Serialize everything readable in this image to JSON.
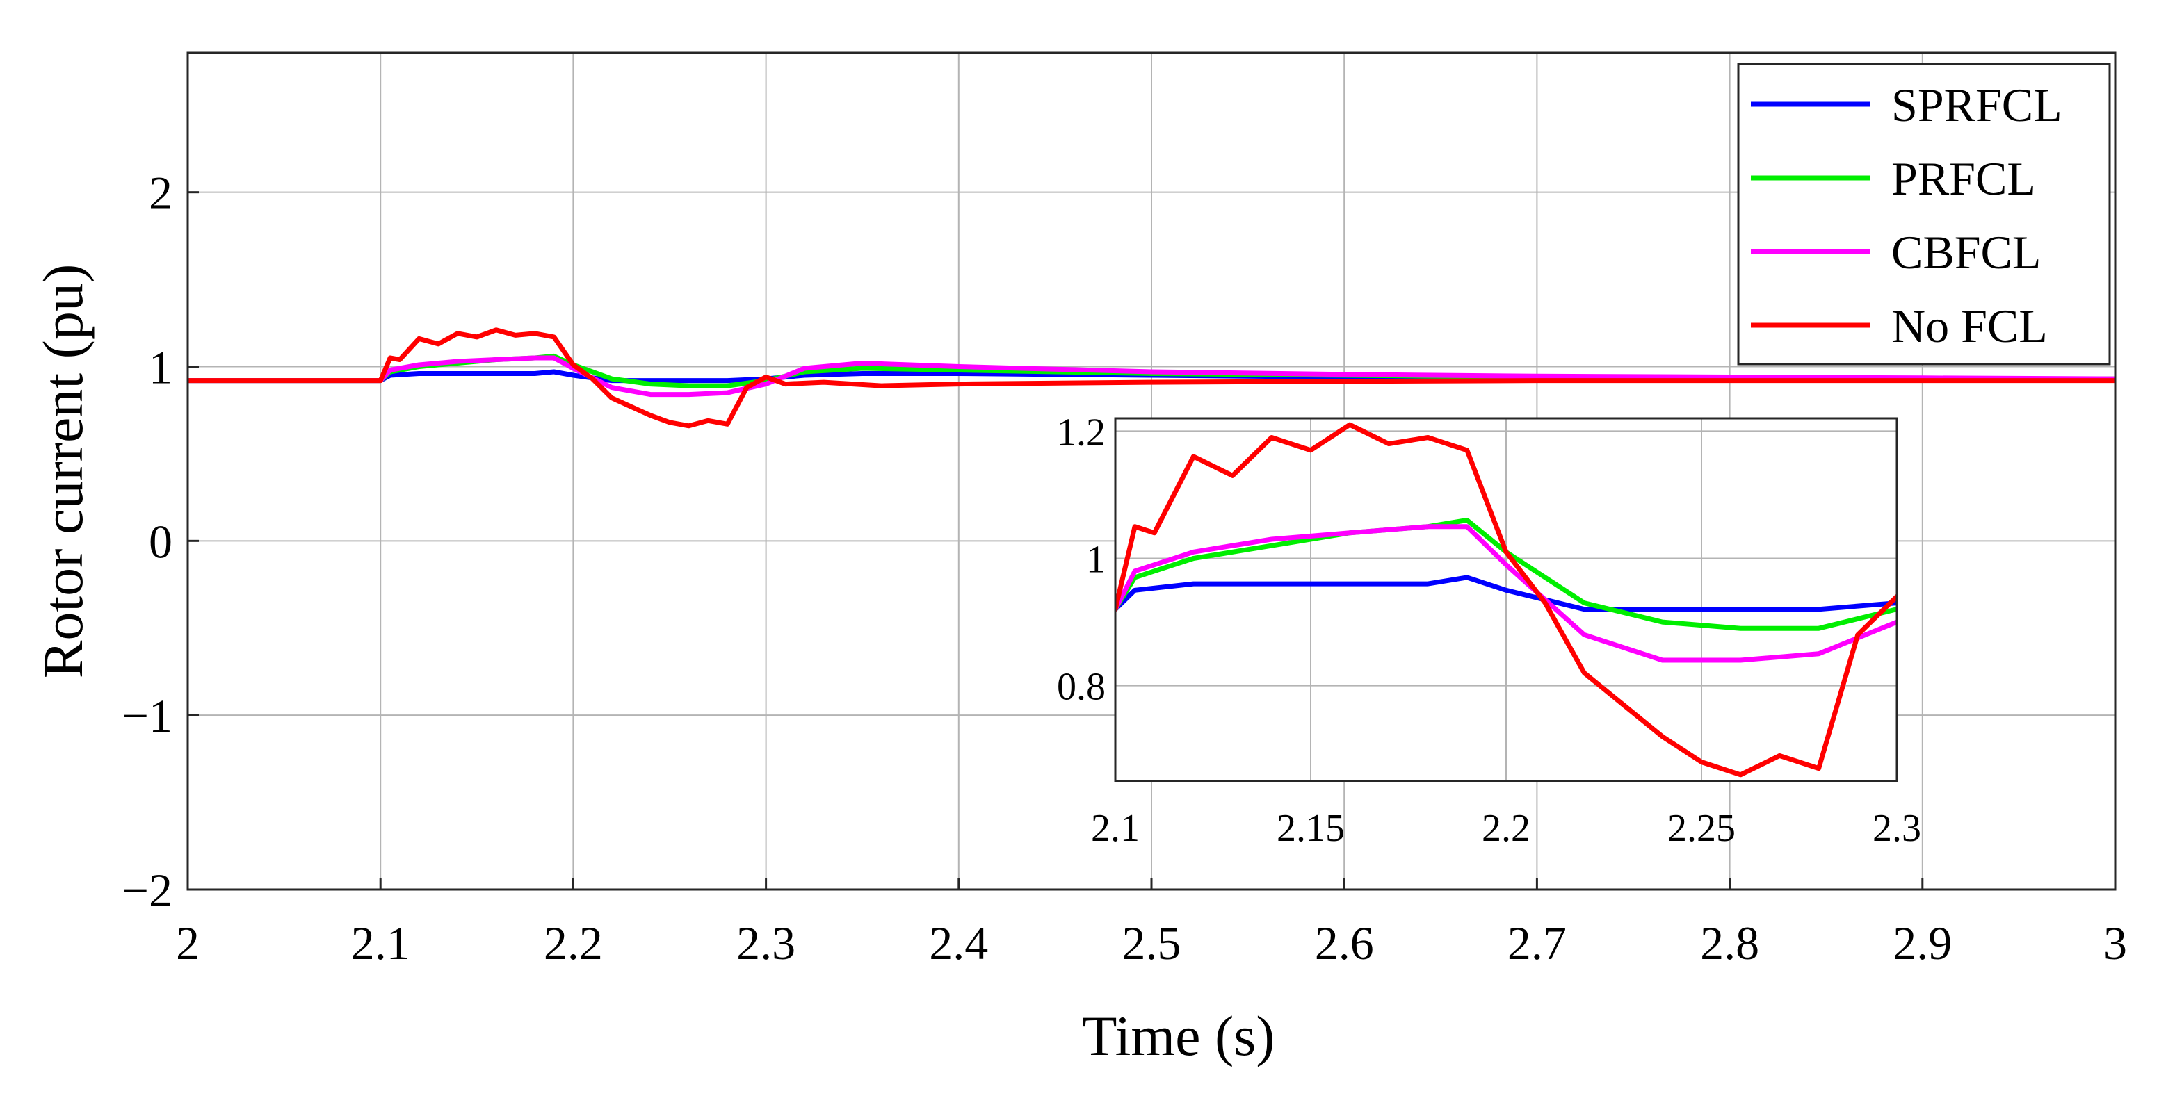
{
  "chart_data": {
    "type": "line",
    "xlabel": "Time (s)",
    "ylabel": "Rotor current (pu)",
    "xlim": [
      2,
      3
    ],
    "ylim": [
      -2,
      2.8
    ],
    "xticks": [
      2,
      2.1,
      2.2,
      2.3,
      2.4,
      2.5,
      2.6,
      2.7,
      2.8,
      2.9,
      3
    ],
    "xtick_labels": [
      "2",
      "2.1",
      "2.2",
      "2.3",
      "2.4",
      "2.5",
      "2.6",
      "2.7",
      "2.8",
      "2.9",
      "3"
    ],
    "yticks": [
      -2,
      -1,
      0,
      1,
      2
    ],
    "ytick_labels": [
      "−2",
      "−1",
      "0",
      "1",
      "2"
    ],
    "grid": true,
    "legend_position": "top-right",
    "series": [
      {
        "name": "SPRFCL",
        "color": "#0000ff",
        "x": [
          2.0,
          2.1,
          2.105,
          2.12,
          2.14,
          2.16,
          2.18,
          2.19,
          2.2,
          2.22,
          2.24,
          2.26,
          2.28,
          2.3,
          2.32,
          2.35,
          2.4,
          2.5,
          2.6,
          2.7,
          2.8,
          2.9,
          3.0
        ],
        "y": [
          0.92,
          0.92,
          0.95,
          0.96,
          0.96,
          0.96,
          0.96,
          0.97,
          0.95,
          0.92,
          0.92,
          0.92,
          0.92,
          0.93,
          0.95,
          0.96,
          0.96,
          0.95,
          0.94,
          0.935,
          0.93,
          0.93,
          0.925
        ]
      },
      {
        "name": "PRFCL",
        "color": "#00ee00",
        "x": [
          2.0,
          2.1,
          2.105,
          2.12,
          2.14,
          2.16,
          2.18,
          2.19,
          2.2,
          2.22,
          2.24,
          2.26,
          2.28,
          2.3,
          2.32,
          2.35,
          2.4,
          2.5,
          2.6,
          2.7,
          2.8,
          2.9,
          3.0
        ],
        "y": [
          0.92,
          0.92,
          0.97,
          1.0,
          1.02,
          1.04,
          1.05,
          1.06,
          1.01,
          0.93,
          0.9,
          0.89,
          0.89,
          0.92,
          0.97,
          0.99,
          0.98,
          0.96,
          0.95,
          0.94,
          0.935,
          0.93,
          0.93
        ]
      },
      {
        "name": "CBFCL",
        "color": "#ff00ff",
        "x": [
          2.0,
          2.1,
          2.105,
          2.12,
          2.14,
          2.16,
          2.18,
          2.19,
          2.2,
          2.22,
          2.24,
          2.26,
          2.28,
          2.3,
          2.32,
          2.35,
          2.4,
          2.5,
          2.6,
          2.7,
          2.8,
          2.9,
          3.0
        ],
        "y": [
          0.92,
          0.92,
          0.98,
          1.01,
          1.03,
          1.04,
          1.05,
          1.05,
          0.99,
          0.88,
          0.84,
          0.84,
          0.85,
          0.9,
          0.99,
          1.02,
          1.0,
          0.97,
          0.955,
          0.945,
          0.94,
          0.935,
          0.93
        ]
      },
      {
        "name": "No FCL",
        "color": "#ff0000",
        "x": [
          2.0,
          2.1,
          2.105,
          2.11,
          2.12,
          2.13,
          2.14,
          2.15,
          2.16,
          2.17,
          2.18,
          2.19,
          2.2,
          2.21,
          2.22,
          2.23,
          2.24,
          2.25,
          2.26,
          2.27,
          2.28,
          2.29,
          2.3,
          2.31,
          2.33,
          2.36,
          2.4,
          2.5,
          2.6,
          2.7,
          2.8,
          2.9,
          3.0
        ],
        "y": [
          0.92,
          0.92,
          1.05,
          1.04,
          1.16,
          1.13,
          1.19,
          1.17,
          1.21,
          1.18,
          1.19,
          1.17,
          1.01,
          0.93,
          0.82,
          0.77,
          0.72,
          0.68,
          0.66,
          0.69,
          0.67,
          0.88,
          0.94,
          0.9,
          0.91,
          0.89,
          0.9,
          0.91,
          0.915,
          0.92,
          0.92,
          0.92,
          0.92
        ]
      }
    ],
    "inset": {
      "xlim": [
        2.1,
        2.3
      ],
      "ylim": [
        0.65,
        1.22
      ],
      "xticks": [
        2.1,
        2.15,
        2.2,
        2.25,
        2.3
      ],
      "xtick_labels": [
        "2.1",
        "2.15",
        "2.2",
        "2.25",
        "2.3"
      ],
      "yticks": [
        0.8,
        1.0,
        1.2
      ],
      "ytick_labels": [
        "0.8",
        "1",
        "1.2"
      ],
      "grid": true
    }
  }
}
